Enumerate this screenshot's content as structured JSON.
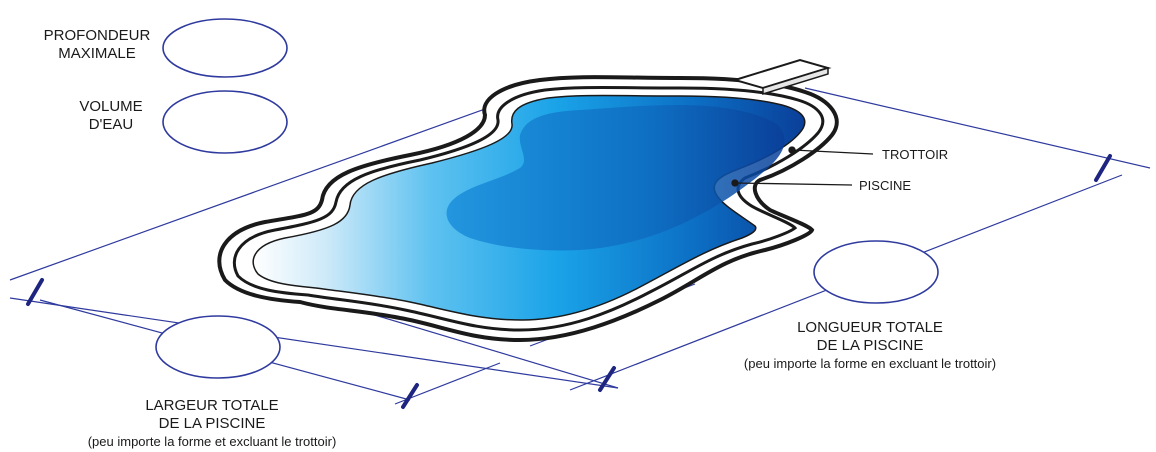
{
  "labels": {
    "max_depth": [
      "PROFONDEUR",
      "MAXIMALE"
    ],
    "water_volume": [
      "VOLUME",
      "D'EAU"
    ],
    "deck": "TROTTOIR",
    "pool": "PISCINE",
    "total_length": [
      "LONGUEUR TOTALE",
      "DE LA PISCINE"
    ],
    "total_length_note": "(peu importe la forme en excluant le trottoir)",
    "total_width": [
      "LARGEUR TOTALE",
      "DE LA PISCINE"
    ],
    "total_width_note": "(peu importe la forme et excluant le trottoir)"
  },
  "colors": {
    "outline": "#1a1a1a",
    "dimension_line": "#2f3a9e",
    "tick": "#1e2580",
    "water_deep": "#0a3f99",
    "water_mid": "#1aa3e8",
    "water_shallow": "#ffffff",
    "board": "#ffffff"
  }
}
